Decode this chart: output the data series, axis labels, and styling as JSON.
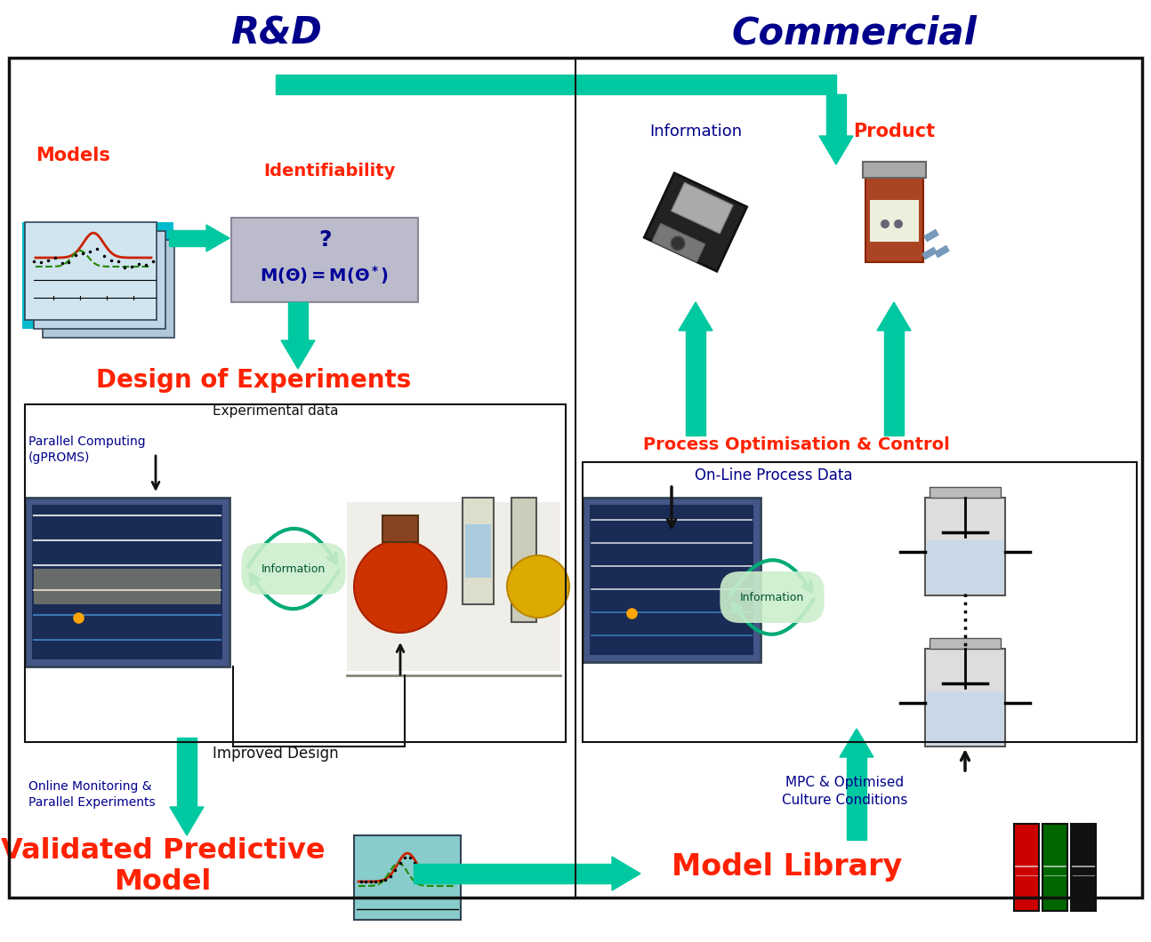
{
  "title_rd": "R&D",
  "title_commercial": "Commercial",
  "arrow_color": "#00C8A0",
  "text_red": "#FF2200",
  "text_blue": "#00008B",
  "text_black": "#111111",
  "bg": "#FFFFFF",
  "border": "#222222",
  "id_bg": "#AAAABB",
  "figsize": [
    12.94,
    10.6
  ],
  "dpi": 100,
  "labels": {
    "models": "Models",
    "identifiability": "Identifiability",
    "doe": "Design of Experiments",
    "exp_data": "Experimental data",
    "par_comp": "Parallel Computing\n(gPROMS)",
    "improved": "Improved Design",
    "online_mon": "Online Monitoring &\nParallel Experiments",
    "validated": "Validated Predictive\nModel",
    "info_top": "Information",
    "product": "Product",
    "proc_opt": "Process Optimisation & Control",
    "online_proc": "On-Line Process Data",
    "mpc": "MPC & Optimised\nCulture Conditions",
    "model_lib": "Model Library"
  }
}
